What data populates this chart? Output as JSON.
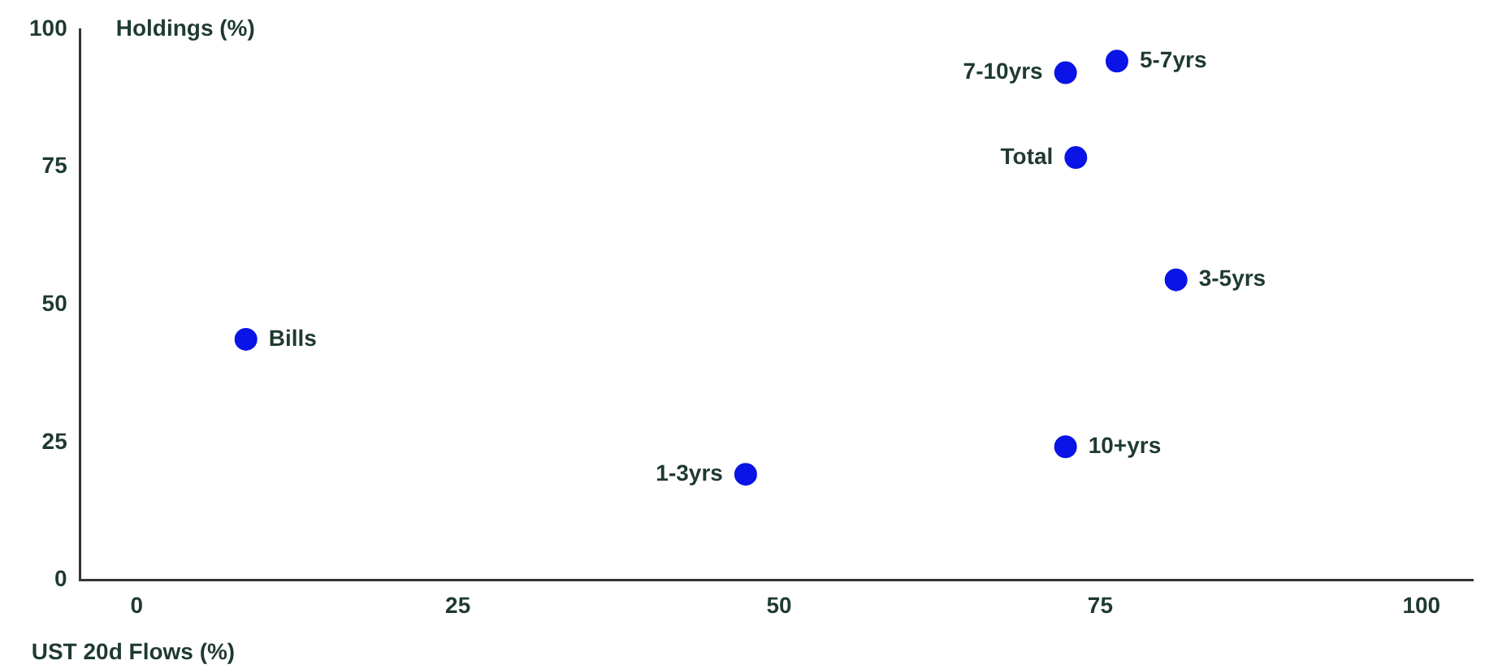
{
  "chart_data": {
    "type": "scatter",
    "xlabel": "UST 20d Flows (%)",
    "ylabel": "Holdings (%)",
    "x": [
      8.5,
      47.4,
      72.3,
      80.9,
      73.1,
      72.3,
      76.3
    ],
    "series": [
      {
        "color": "#0a14e6",
        "values": [
          43.7,
          19.2,
          24.2,
          54.5,
          76.7,
          92.1,
          94.2
        ]
      }
    ],
    "xlim": [
      -4.4,
      104
    ],
    "xticks": [
      0,
      25,
      50,
      75,
      100
    ],
    "ylim": [
      0,
      100
    ],
    "yticks": [
      0,
      25,
      50,
      75,
      100
    ],
    "grid": false,
    "legend": false,
    "marker": "circle",
    "annotations": [
      {
        "text": "Bills",
        "x": 8.5,
        "y": 43.7
      },
      {
        "text": "1-3yrs",
        "x": 47.4,
        "y": 19.2
      },
      {
        "text": "10+yrs",
        "x": 72.3,
        "y": 24.2
      },
      {
        "text": "3-5yrs",
        "x": 80.9,
        "y": 54.5
      },
      {
        "text": "Total",
        "x": 73.1,
        "y": 76.7
      },
      {
        "text": "7-10yrs",
        "x": 72.3,
        "y": 92.1
      },
      {
        "text": "5-7yrs",
        "x": 76.3,
        "y": 94.2
      }
    ]
  }
}
